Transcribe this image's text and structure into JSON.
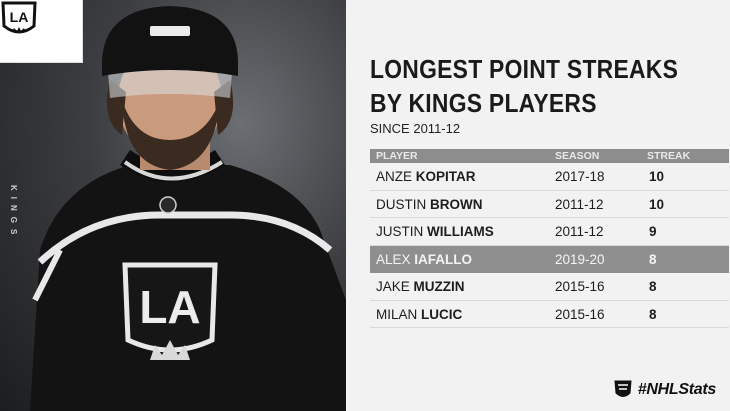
{
  "graphic": {
    "logo_text": "LA",
    "side_text": "KINGS",
    "title_line1": "LONGEST POINT STREAKS",
    "title_line2": "BY KINGS PLAYERS",
    "subtitle": "SINCE 2011-12",
    "columns": {
      "player": "PLAYER",
      "season": "SEASON",
      "streak": "STREAK"
    },
    "rows": [
      {
        "first": "ANZE",
        "last": "KOPITAR",
        "season": "2017-18",
        "streak": "10",
        "highlight": false
      },
      {
        "first": "DUSTIN",
        "last": "BROWN",
        "season": "2011-12",
        "streak": "10",
        "highlight": false
      },
      {
        "first": "JUSTIN",
        "last": "WILLIAMS",
        "season": "2011-12",
        "streak": "9",
        "highlight": false
      },
      {
        "first": "ALEX",
        "last": "IAFALLO",
        "season": "2019-20",
        "streak": "8",
        "highlight": true
      },
      {
        "first": "JAKE",
        "last": "MUZZIN",
        "season": "2015-16",
        "streak": "8",
        "highlight": false
      },
      {
        "first": "MILAN",
        "last": "LUCIC",
        "season": "2015-16",
        "streak": "8",
        "highlight": false
      }
    ],
    "hashtag": "#NHLStats",
    "colors": {
      "highlight_row": "#8f8f8f",
      "header_bar": "#8d8d8d",
      "background": "#f2f2f2"
    }
  }
}
